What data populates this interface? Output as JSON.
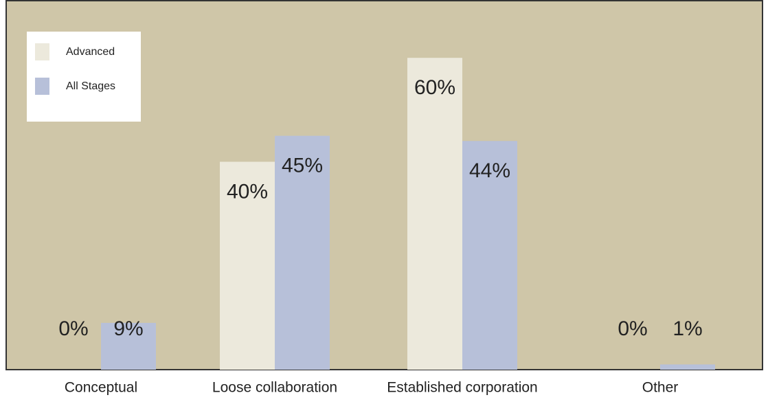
{
  "chart_data": {
    "type": "bar",
    "categories": [
      "Conceptual",
      "Loose collaboration",
      "Established corporation",
      "Other"
    ],
    "series": [
      {
        "name": "Advanced",
        "color": "#ece9dc",
        "values": [
          0,
          40,
          60,
          0
        ],
        "value_labels": [
          "0%",
          "40%",
          "60%",
          "0%"
        ]
      },
      {
        "name": "All Stages",
        "color": "#b7c0d9",
        "values": [
          9,
          45,
          44,
          1
        ],
        "value_labels": [
          "9%",
          "45%",
          "44%",
          "1%"
        ]
      }
    ],
    "ylim": [
      0,
      71
    ],
    "background": "#cfc6a8",
    "legend": "upper-left"
  }
}
